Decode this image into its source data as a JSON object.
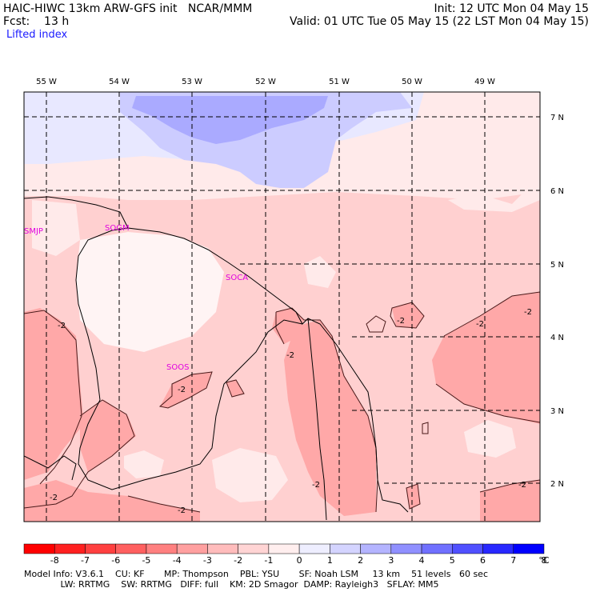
{
  "header": {
    "line1_left": "HAIC-HIWC 13km ARW-GFS init   NCAR/MMM",
    "line1_right": "Init: 12 UTC Mon 04 May 15",
    "line2_left": "Fcst:    13 h",
    "line2_right": "Valid: 01 UTC Tue 05 May 15 (22 LST Mon 04 May 15)",
    "field": "Lifted index"
  },
  "map": {
    "longitude_labels": [
      "55 W",
      "54 W",
      "53 W",
      "52 W",
      "51 W",
      "50 W",
      "49 W"
    ],
    "latitude_labels": [
      "7 N",
      "6 N",
      "5 N",
      "4 N",
      "3 N",
      "2 N"
    ],
    "stations": [
      "SMJP",
      "SOGM",
      "SOCA",
      "SOOS"
    ],
    "contour_label": "-2",
    "colors": {
      "very_light_pink": "#ffeaea",
      "light_pink": "#ffd0d0",
      "pink": "#ffbcbc",
      "medium_pink": "#ffa8a8",
      "pale_blue": "#e8e8ff",
      "light_blue": "#ccccff",
      "blue": "#aaaaff",
      "near_white": "#fff4f4"
    }
  },
  "colorbar": {
    "labels": [
      "-8",
      "-7",
      "-6",
      "-5",
      "-4",
      "-3",
      "-2",
      "-1",
      "0",
      "1",
      "2",
      "3",
      "4",
      "5",
      "6",
      "7",
      "8"
    ],
    "unit": "°C",
    "colors": [
      "#ff0000",
      "#ff2020",
      "#ff4040",
      "#ff6060",
      "#ff8080",
      "#ffa0a0",
      "#ffbcbc",
      "#ffd4d4",
      "#ffeeee",
      "#eeeeff",
      "#d4d4ff",
      "#b4b4ff",
      "#9090ff",
      "#7070ff",
      "#5050ff",
      "#2828ff",
      "#0000ff"
    ]
  },
  "footer": {
    "line1": "Model Info: V3.6.1    CU: KF       MP: Thompson    PBL: YSU       SF: Noah LSM     13 km    51 levels   60 sec",
    "line2": "             LW: RRTMG    SW: RRTMG   DIFF: full    KM: 2D Smagor  DAMP: Rayleigh3   SFLAY: MM5"
  }
}
